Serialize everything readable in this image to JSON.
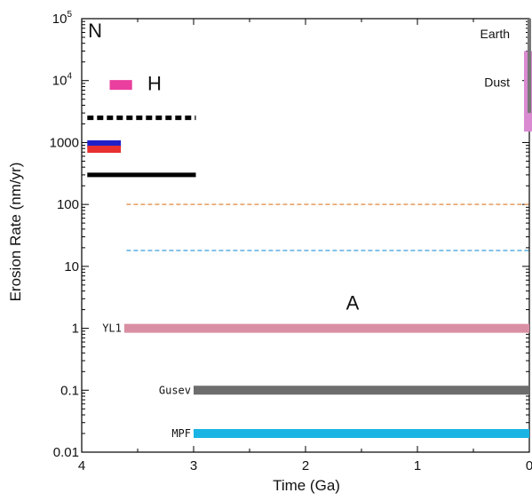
{
  "chart_data": {
    "type": "bar",
    "xlabel": "Time (Ga)",
    "ylabel": "Erosion Rate (nm/yr)",
    "xlim": [
      4,
      0
    ],
    "ylim": [
      0.01,
      100000
    ],
    "yscale": "log",
    "xticks": [
      {
        "value": 4,
        "label": "4"
      },
      {
        "value": 3,
        "label": "3"
      },
      {
        "value": 2,
        "label": "2"
      },
      {
        "value": 1,
        "label": "1"
      },
      {
        "value": 0,
        "label": "0"
      }
    ],
    "yticks": [
      {
        "value": 0.01,
        "label": "0.01"
      },
      {
        "value": 0.1,
        "label": "0.1"
      },
      {
        "value": 1,
        "label": "1"
      },
      {
        "value": 10,
        "label": "10"
      },
      {
        "value": 100,
        "label": "100"
      },
      {
        "value": 1000,
        "label": "1000"
      },
      {
        "value": 10000,
        "label": "10",
        "exp": "4"
      },
      {
        "value": 100000,
        "label": "10",
        "exp": "5"
      }
    ],
    "era_labels": [
      {
        "text": "N",
        "x": 3.88,
        "y": 50000
      },
      {
        "text": "H",
        "x": 3.35,
        "y": 7000
      },
      {
        "text": "A",
        "x": 1.58,
        "y": 2.0
      }
    ],
    "corner_labels": [
      {
        "text": "Earth",
        "y": 48000
      },
      {
        "text": "Dust",
        "y": 8000
      }
    ],
    "segments": [
      {
        "x_start": 3.75,
        "x_end": 3.55,
        "y": 8500,
        "color": "#ea3f9e",
        "width": 11,
        "style": "solid"
      },
      {
        "x_start": 3.95,
        "x_end": 2.98,
        "y": 2500,
        "color": "#000000",
        "width": 5,
        "style": "dotted"
      },
      {
        "x_start": 3.95,
        "x_end": 3.65,
        "y": 950,
        "color": "#2020c8",
        "width": 8,
        "style": "solid"
      },
      {
        "x_start": 3.95,
        "x_end": 3.65,
        "y": 780,
        "color": "#e83030",
        "width": 8,
        "style": "solid"
      },
      {
        "x_start": 3.95,
        "x_end": 2.98,
        "y": 300,
        "color": "#000000",
        "width": 5,
        "style": "solid"
      },
      {
        "x_start": 3.6,
        "x_end": 0,
        "y": 100,
        "color": "#e89a5a",
        "width": 1.5,
        "style": "dashed"
      },
      {
        "x_start": 3.6,
        "x_end": 0,
        "y": 18,
        "color": "#5aaee0",
        "width": 1.5,
        "style": "dashed"
      },
      {
        "x_start": 3.62,
        "x_end": 0,
        "y": 1,
        "color": "#d98fa3",
        "width": 10,
        "style": "solid",
        "label": "YL1"
      },
      {
        "x_start": 3.0,
        "x_end": 0,
        "y": 0.1,
        "color": "#6d6d6d",
        "width": 10,
        "style": "solid",
        "label": "Gusev"
      },
      {
        "x_start": 3.0,
        "x_end": 0,
        "y": 0.02,
        "color": "#19b4e3",
        "width": 10,
        "style": "solid",
        "label": "MPF"
      }
    ],
    "vertical_bars": [
      {
        "x": 0,
        "y_low": 1500,
        "y_high": 30000,
        "color": "#d98ad0",
        "width": 12
      },
      {
        "x": 0,
        "y_low": 3000,
        "y_high": 100000,
        "color": "#777777",
        "width": 4
      }
    ],
    "grid": false,
    "legend": "none"
  }
}
